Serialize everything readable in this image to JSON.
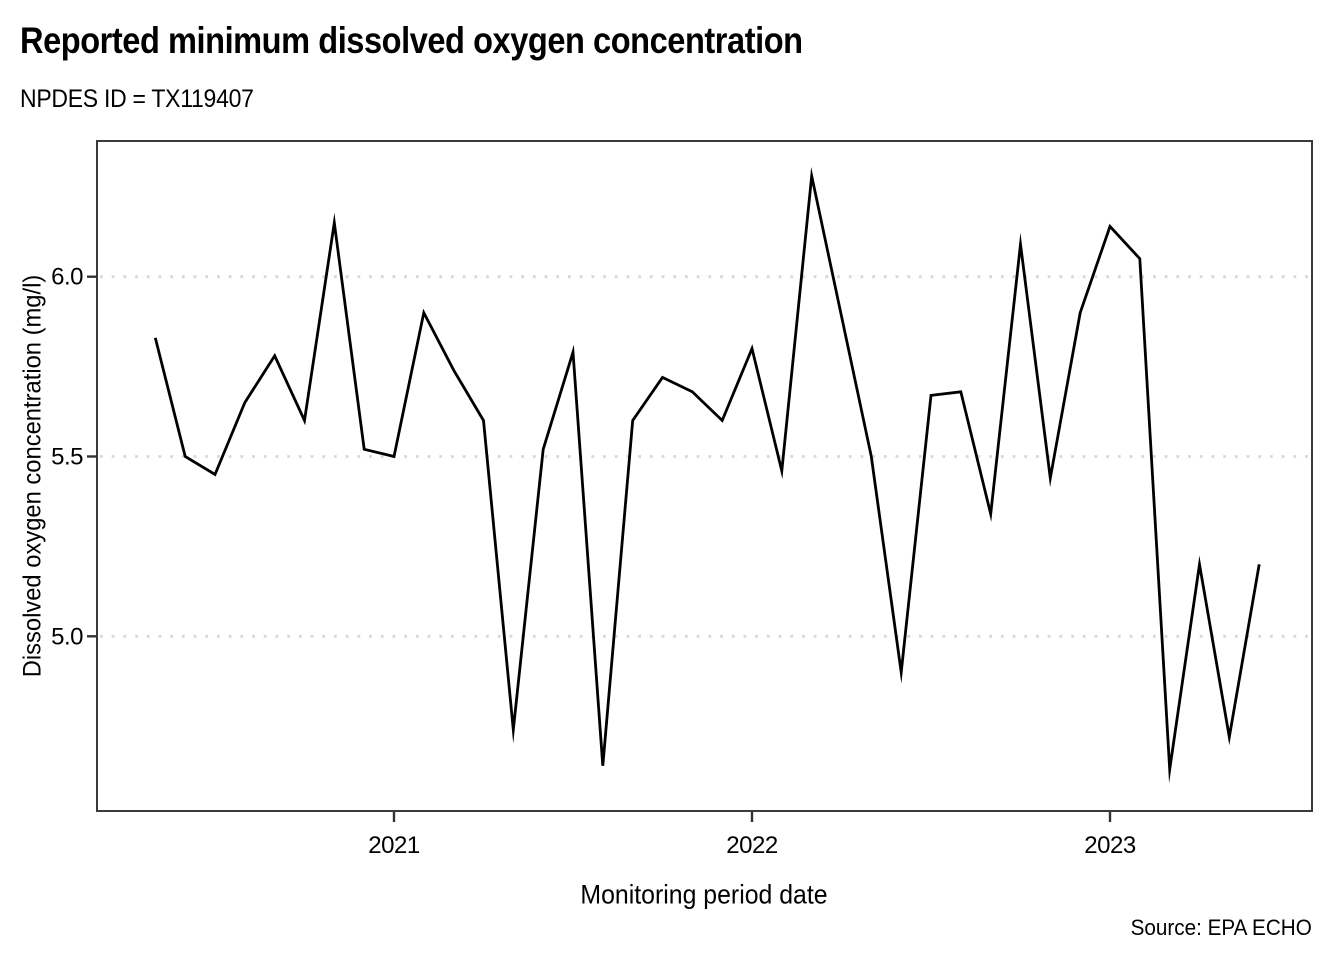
{
  "chart_data": {
    "type": "line",
    "title": "Reported minimum dissolved oxygen concentration",
    "subtitle": "NPDES ID = TX119407",
    "xlabel": "Monitoring period date",
    "ylabel": "Dissolved oxygen concentration (mg/l)",
    "source": "Source: EPA ECHO",
    "series_name": "Reported minimum dissolved oxygen concentration (mg/l)",
    "x": [
      "2020-05",
      "2020-06",
      "2020-07",
      "2020-08",
      "2020-09",
      "2020-10",
      "2020-11",
      "2020-12",
      "2021-01",
      "2021-02",
      "2021-03",
      "2021-04",
      "2021-05",
      "2021-06",
      "2021-07",
      "2021-08",
      "2021-09",
      "2021-10",
      "2021-11",
      "2021-12",
      "2022-01",
      "2022-02",
      "2022-03",
      "2022-05",
      "2022-06",
      "2022-07",
      "2022-08",
      "2022-09",
      "2022-10",
      "2022-11",
      "2022-12",
      "2023-01",
      "2023-02",
      "2023-03",
      "2023-04",
      "2023-05",
      "2023-06"
    ],
    "y": [
      5.83,
      5.5,
      5.45,
      5.65,
      5.78,
      5.6,
      6.15,
      5.52,
      5.5,
      5.9,
      5.74,
      5.6,
      4.74,
      5.52,
      5.79,
      4.64,
      5.6,
      5.72,
      5.68,
      5.6,
      5.8,
      5.46,
      6.28,
      5.5,
      4.9,
      5.67,
      5.68,
      5.34,
      6.09,
      5.44,
      5.9,
      6.14,
      6.05,
      4.63,
      5.2,
      4.72,
      5.2
    ],
    "x_ticks": [
      {
        "value": 2021,
        "label": "2021"
      },
      {
        "value": 2022,
        "label": "2022"
      },
      {
        "value": 2023,
        "label": "2023"
      }
    ],
    "y_ticks": [
      {
        "value": 5.0,
        "label": "5.0"
      },
      {
        "value": 5.5,
        "label": "5.5"
      },
      {
        "value": 6.0,
        "label": "6.0"
      }
    ],
    "ylim": [
      4.51,
      6.38
    ],
    "xlim_years": [
      2020.17,
      2023.57
    ],
    "grid": "horizontal-dotted",
    "legend": "none",
    "line_color": "#000000",
    "grid_color": "#d8d8d8",
    "panel_border_color": "#3a3a3a",
    "tick_color": "#333333",
    "text_color": "#000000"
  }
}
